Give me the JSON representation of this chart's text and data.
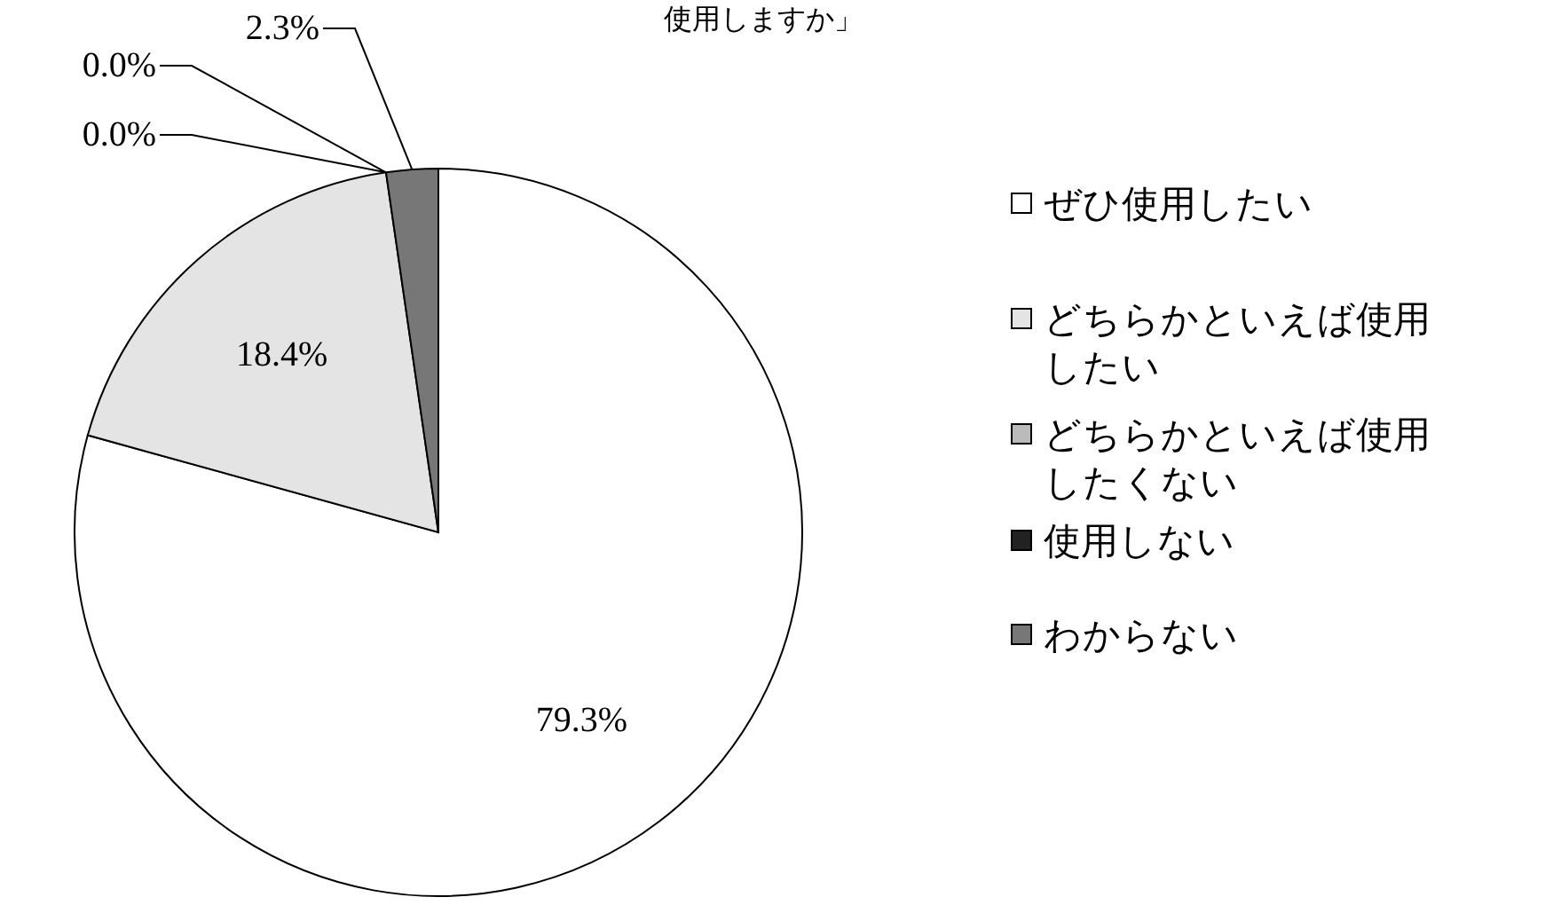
{
  "chart_data": {
    "type": "pie",
    "title": "使用しますか」",
    "categories": [
      "ぜひ使用したい",
      "どちらかといえば使用したい",
      "どちらかといえば使用したくない",
      "使用しない",
      "わからない"
    ],
    "values": [
      79.3,
      18.4,
      0.0,
      0.0,
      2.3
    ],
    "colors": [
      "#ffffff",
      "#e4e4e4",
      "#bbbbbb",
      "#222222",
      "#777777"
    ],
    "value_labels": [
      "79.3%",
      "18.4%",
      "0.0%",
      "0.0%",
      "2.3%"
    ],
    "legend": "right"
  }
}
